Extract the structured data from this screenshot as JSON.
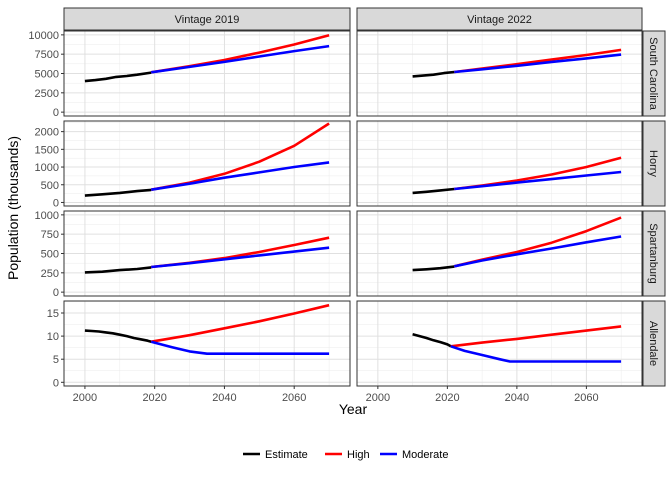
{
  "chart_data": {
    "type": "line",
    "xlabel": "Year",
    "ylabel": "Population (thousands)",
    "xlim": [
      1994,
      2076
    ],
    "x_ticks": [
      2000,
      2020,
      2040,
      2060
    ],
    "grid": true,
    "legend_position": "bottom",
    "columns": [
      "Vintage 2019",
      "Vintage 2022"
    ],
    "legend": [
      {
        "key": "estimate",
        "label": "Estimate",
        "color": "#000000"
      },
      {
        "key": "high",
        "label": "High",
        "color": "#ff0000"
      },
      {
        "key": "moderate",
        "label": "Moderate",
        "color": "#0000ff"
      }
    ],
    "rows": [
      {
        "label": "South Carolina",
        "ylim": [
          -500,
          10500
        ],
        "y_ticks": [
          0,
          2500,
          5000,
          7500,
          10000
        ],
        "panels": [
          {
            "estimate": {
              "x": [
                2000,
                2003,
                2006,
                2009,
                2012,
                2015,
                2019
              ],
              "y": [
                4020,
                4150,
                4320,
                4560,
                4680,
                4850,
                5120
              ]
            },
            "high": {
              "x": [
                2019,
                2030,
                2040,
                2050,
                2060,
                2070
              ],
              "y": [
                5150,
                5950,
                6750,
                7700,
                8750,
                9950
              ]
            },
            "moderate": {
              "x": [
                2019,
                2030,
                2040,
                2050,
                2060,
                2070
              ],
              "y": [
                5150,
                5850,
                6500,
                7200,
                7900,
                8550
              ]
            }
          },
          {
            "estimate": {
              "x": [
                2010,
                2013,
                2016,
                2019,
                2022
              ],
              "y": [
                4630,
                4730,
                4850,
                5050,
                5200
              ]
            },
            "high": {
              "x": [
                2022,
                2030,
                2040,
                2050,
                2060,
                2070
              ],
              "y": [
                5200,
                5650,
                6200,
                6800,
                7400,
                8050
              ]
            },
            "moderate": {
              "x": [
                2022,
                2030,
                2040,
                2050,
                2060,
                2070
              ],
              "y": [
                5200,
                5550,
                6000,
                6500,
                6950,
                7450
              ]
            }
          }
        ]
      },
      {
        "label": "Horry",
        "ylim": [
          -100,
          2300
        ],
        "y_ticks": [
          0,
          500,
          1000,
          1500,
          2000
        ],
        "panels": [
          {
            "estimate": {
              "x": [
                2000,
                2005,
                2010,
                2015,
                2019
              ],
              "y": [
                195,
                230,
                270,
                320,
                355
              ]
            },
            "high": {
              "x": [
                2019,
                2030,
                2040,
                2050,
                2060,
                2070
              ],
              "y": [
                360,
                560,
                810,
                1150,
                1600,
                2230
              ]
            },
            "moderate": {
              "x": [
                2019,
                2030,
                2040,
                2050,
                2060,
                2070
              ],
              "y": [
                360,
                530,
                700,
                850,
                1000,
                1130
              ]
            }
          },
          {
            "estimate": {
              "x": [
                2010,
                2014,
                2018,
                2022
              ],
              "y": [
                270,
                300,
                340,
                380
              ]
            },
            "high": {
              "x": [
                2022,
                2030,
                2040,
                2050,
                2060,
                2070
              ],
              "y": [
                380,
                480,
                620,
                790,
                1000,
                1260
              ]
            },
            "moderate": {
              "x": [
                2022,
                2030,
                2040,
                2050,
                2060,
                2070
              ],
              "y": [
                380,
                460,
                560,
                660,
                760,
                860
              ]
            }
          }
        ]
      },
      {
        "label": "Spartanburg",
        "ylim": [
          -50,
          1050
        ],
        "y_ticks": [
          0,
          250,
          500,
          750,
          1000
        ],
        "panels": [
          {
            "estimate": {
              "x": [
                2000,
                2005,
                2010,
                2015,
                2019
              ],
              "y": [
                255,
                265,
                285,
                300,
                320
              ]
            },
            "high": {
              "x": [
                2019,
                2030,
                2040,
                2050,
                2060,
                2070
              ],
              "y": [
                325,
                380,
                440,
                520,
                610,
                705
              ]
            },
            "moderate": {
              "x": [
                2019,
                2030,
                2040,
                2050,
                2060,
                2070
              ],
              "y": [
                325,
                375,
                425,
                475,
                525,
                575
              ]
            }
          },
          {
            "estimate": {
              "x": [
                2010,
                2014,
                2018,
                2022
              ],
              "y": [
                285,
                295,
                310,
                330
              ]
            },
            "high": {
              "x": [
                2022,
                2030,
                2040,
                2050,
                2060,
                2070
              ],
              "y": [
                335,
                420,
                520,
                640,
                790,
                965
              ]
            },
            "moderate": {
              "x": [
                2022,
                2030,
                2040,
                2050,
                2060,
                2070
              ],
              "y": [
                335,
                410,
                490,
                565,
                645,
                720
              ]
            }
          }
        ]
      },
      {
        "label": "Allendale",
        "ylim": [
          -0.8,
          17.6
        ],
        "y_ticks": [
          0,
          5,
          10,
          15
        ],
        "panels": [
          {
            "estimate": {
              "x": [
                2000,
                2002,
                2004,
                2006,
                2008,
                2010,
                2012,
                2014,
                2016,
                2018,
                2019
              ],
              "y": [
                11.2,
                11.1,
                11.0,
                10.8,
                10.6,
                10.3,
                10.0,
                9.6,
                9.3,
                9.0,
                8.8
              ]
            },
            "high": {
              "x": [
                2019,
                2030,
                2040,
                2050,
                2060,
                2070
              ],
              "y": [
                8.8,
                10.2,
                11.7,
                13.2,
                14.9,
                16.7
              ]
            },
            "moderate": {
              "x": [
                2019,
                2025,
                2030,
                2035,
                2040,
                2050,
                2060,
                2070
              ],
              "y": [
                8.8,
                7.6,
                6.7,
                6.2,
                6.2,
                6.2,
                6.2,
                6.2
              ]
            }
          },
          {
            "estimate": {
              "x": [
                2010,
                2012,
                2014,
                2016,
                2018,
                2020,
                2021
              ],
              "y": [
                10.4,
                10.0,
                9.6,
                9.1,
                8.7,
                8.2,
                7.8
              ]
            },
            "high": {
              "x": [
                2021,
                2030,
                2040,
                2050,
                2060,
                2070
              ],
              "y": [
                7.8,
                8.6,
                9.4,
                10.3,
                11.2,
                12.1
              ]
            },
            "moderate": {
              "x": [
                2021,
                2025,
                2030,
                2035,
                2038,
                2050,
                2060,
                2070
              ],
              "y": [
                7.8,
                6.8,
                5.9,
                5.0,
                4.5,
                4.5,
                4.5,
                4.5
              ]
            }
          }
        ]
      }
    ]
  }
}
